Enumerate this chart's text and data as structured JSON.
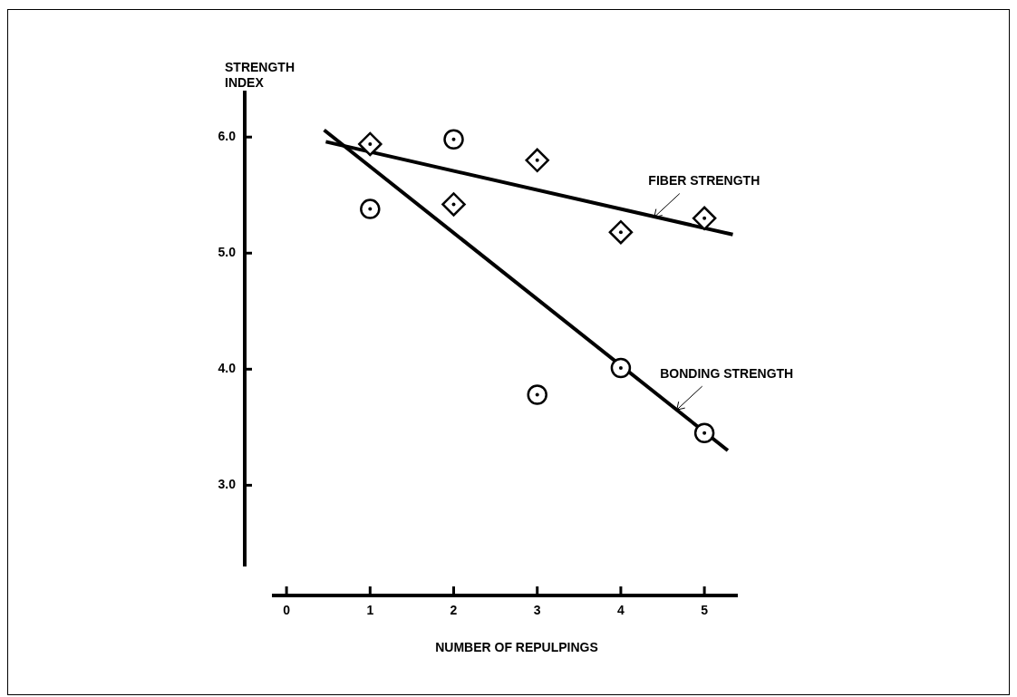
{
  "chart_data": {
    "type": "scatter",
    "xlabel": "NUMBER OF REPULPINGS",
    "ylabel": "STRENGTH INDEX",
    "xlim": [
      -0.5,
      5.4
    ],
    "xticks": [
      0,
      1,
      2,
      3,
      4,
      5
    ],
    "ylim": [
      2.3,
      6.4
    ],
    "yticks": [
      {
        "value": 3,
        "label": "3.0"
      },
      {
        "value": 4,
        "label": "4.0"
      },
      {
        "value": 5,
        "label": "5.0"
      },
      {
        "value": 6,
        "label": "6.0"
      }
    ],
    "grid": false,
    "legend": false,
    "series": [
      {
        "marker": "diamond",
        "color": "#000000",
        "x": [
          1,
          2,
          3,
          4,
          5
        ],
        "values": [
          5.94,
          5.42,
          5.8,
          5.18,
          5.3
        ]
      },
      {
        "marker": "circle",
        "color": "#000000",
        "x": [
          1,
          2,
          3,
          4,
          5
        ],
        "values": [
          5.38,
          5.98,
          3.78,
          4.01,
          3.45
        ]
      },
      {
        "type": "line",
        "marker": "none",
        "color": "#000000",
        "x": [
          0.47,
          5.34
        ],
        "values": [
          5.96,
          5.16
        ]
      },
      {
        "type": "line",
        "marker": "none",
        "color": "#000000",
        "x": [
          0.45,
          5.28
        ],
        "values": [
          6.06,
          3.3
        ]
      }
    ],
    "annotations": [
      {
        "text": "FIBER STRENGTH",
        "x": 4.4,
        "y": 5.31
      },
      {
        "text": "BONDING STRENGTH",
        "x": 4.67,
        "y": 3.65
      }
    ]
  }
}
